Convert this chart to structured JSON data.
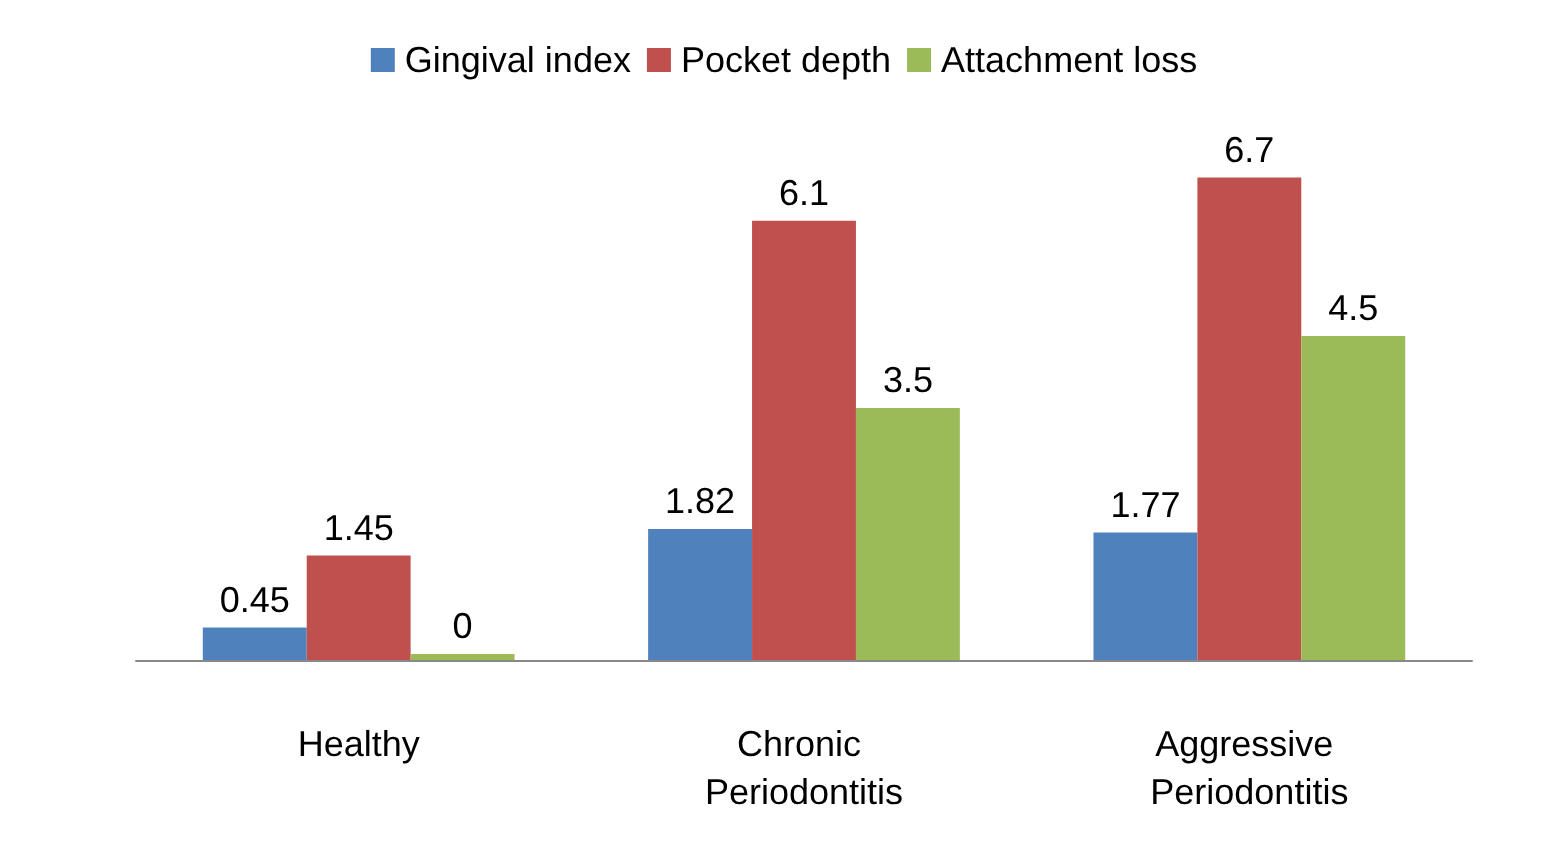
{
  "chart_data": {
    "type": "bar",
    "categories": [
      "Healthy",
      "Chronic Periodontitis",
      "Aggressive Periodontitis"
    ],
    "series": [
      {
        "name": "Gingival index",
        "color": "#4f81bd",
        "values": [
          0.45,
          1.82,
          1.77
        ]
      },
      {
        "name": "Pocket depth",
        "color": "#c0504d",
        "values": [
          1.45,
          6.1,
          6.7
        ]
      },
      {
        "name": "Attachment loss",
        "color": "#9bbb59",
        "values": [
          0,
          3.5,
          4.5
        ]
      }
    ],
    "data_labels": true,
    "legend": "top"
  }
}
